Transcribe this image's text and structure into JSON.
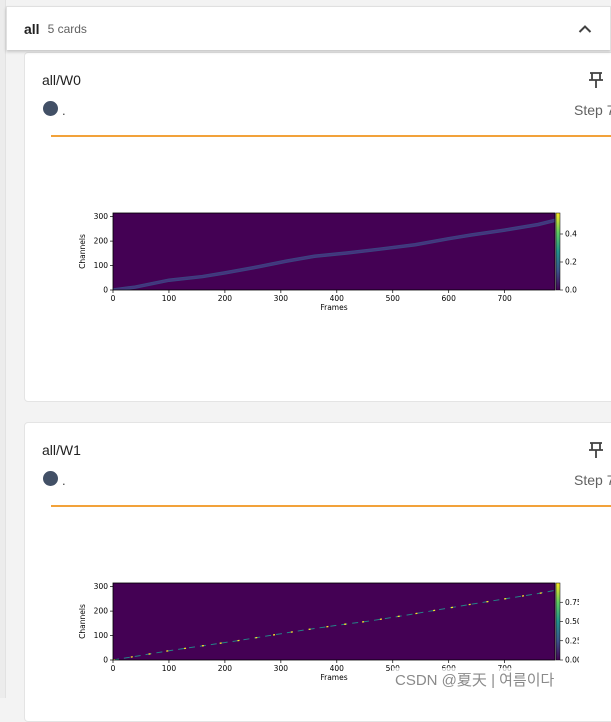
{
  "group": {
    "name": "all",
    "count": "5 cards"
  },
  "icons": {
    "collapse": "chevron-up-icon",
    "pin": "pin-icon",
    "run": "run-color-dot-icon"
  },
  "colors": {
    "separator": "#f2a23a",
    "run_dot": "#425066",
    "heatmap_bg": "#440154"
  },
  "cards": [
    {
      "title": "all/W0",
      "run_label": ".",
      "step": "Step 7",
      "chart_data": {
        "type": "heatmap",
        "xlabel": "Frames",
        "ylabel": "Channels",
        "xlim": [
          0,
          790
        ],
        "ylim": [
          0,
          315
        ],
        "x_ticks": [
          "0",
          "100",
          "200",
          "300",
          "400",
          "500",
          "600",
          "700"
        ],
        "y_ticks": [
          "0",
          "100",
          "200",
          "300"
        ],
        "colorbar_ticks": [
          "0.0",
          "0.2",
          "0.4"
        ],
        "colorbar_range": [
          0,
          0.55
        ],
        "alignment_path": [
          [
            0,
            0
          ],
          [
            40,
            12
          ],
          [
            100,
            40
          ],
          [
            160,
            55
          ],
          [
            200,
            70
          ],
          [
            260,
            95
          ],
          [
            310,
            118
          ],
          [
            360,
            138
          ],
          [
            420,
            152
          ],
          [
            480,
            168
          ],
          [
            540,
            185
          ],
          [
            600,
            210
          ],
          [
            640,
            225
          ],
          [
            700,
            245
          ],
          [
            760,
            268
          ],
          [
            790,
            285
          ]
        ]
      }
    },
    {
      "title": "all/W1",
      "run_label": ".",
      "step": "Step 7",
      "chart_data": {
        "type": "heatmap",
        "xlabel": "Frames",
        "ylabel": "Channels",
        "xlim": [
          0,
          790
        ],
        "ylim": [
          0,
          315
        ],
        "x_ticks": [
          "0",
          "100",
          "200",
          "300",
          "400",
          "500",
          "600",
          "700"
        ],
        "y_ticks": [
          "0",
          "100",
          "200",
          "300"
        ],
        "colorbar_ticks": [
          "0.00",
          "0.25",
          "0.50",
          "0.75"
        ],
        "colorbar_range": [
          0,
          1.0
        ],
        "alignment_path": [
          [
            0,
            0
          ],
          [
            40,
            15
          ],
          [
            100,
            38
          ],
          [
            160,
            58
          ],
          [
            220,
            78
          ],
          [
            280,
            100
          ],
          [
            340,
            122
          ],
          [
            400,
            142
          ],
          [
            460,
            160
          ],
          [
            520,
            182
          ],
          [
            580,
            205
          ],
          [
            640,
            228
          ],
          [
            700,
            250
          ],
          [
            760,
            272
          ],
          [
            790,
            285
          ]
        ]
      }
    }
  ],
  "watermark": "CSDN @夏天 | 여름이다"
}
